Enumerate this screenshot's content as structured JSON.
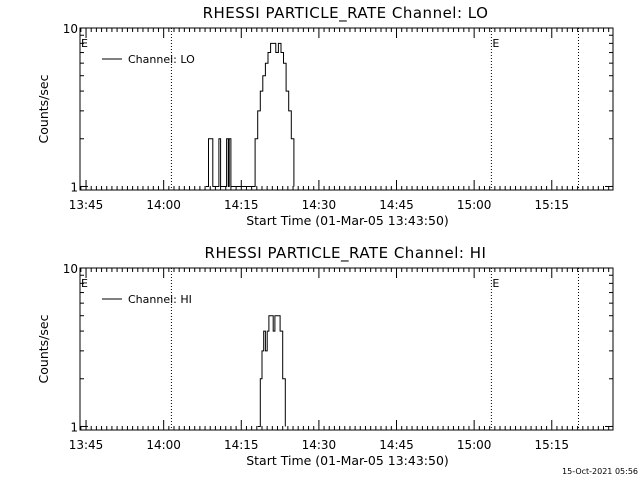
{
  "footer": {
    "timestamp": "15-Oct-2021 05:56"
  },
  "chart_data": [
    {
      "type": "line",
      "title": "RHESSI PARTICLE_RATE Channel: LO",
      "xlabel": "Start Time (01-Mar-05 13:43:50)",
      "ylabel": "Counts/sec",
      "y_scale": "log",
      "ylim": [
        0.95,
        10
      ],
      "y_ticks": [
        "10",
        "1"
      ],
      "xlim": [
        "13:43:50",
        "15:26:50"
      ],
      "x_ticks": [
        "13:45",
        "14:00",
        "14:15",
        "14:30",
        "14:45",
        "15:00",
        "15:15"
      ],
      "grid": false,
      "legend": {
        "position": "top-left",
        "entries": [
          "Channel: LO"
        ]
      },
      "markers": [
        {
          "text": "E",
          "time": "13:43:50"
        },
        {
          "text": "E",
          "time": "15:03:20"
        }
      ],
      "vertical_lines": [
        "14:01:30",
        "15:03:20",
        "15:20:10"
      ],
      "series": [
        {
          "name": "Channel: LO",
          "points": [
            [
              "14:08:10",
              1
            ],
            [
              "14:08:40",
              2
            ],
            [
              "14:09:10",
              2
            ],
            [
              "14:09:30",
              1
            ],
            [
              "14:10:30",
              1
            ],
            [
              "14:10:40",
              2
            ],
            [
              "14:11:00",
              1
            ],
            [
              "14:12:00",
              1
            ],
            [
              "14:12:10",
              2
            ],
            [
              "14:12:30",
              1
            ],
            [
              "14:12:40",
              2
            ],
            [
              "14:13:00",
              1
            ],
            [
              "14:17:10",
              1
            ],
            [
              "14:17:40",
              2
            ],
            [
              "14:18:10",
              3
            ],
            [
              "14:18:40",
              4
            ],
            [
              "14:19:10",
              5
            ],
            [
              "14:19:40",
              6
            ],
            [
              "14:20:10",
              7
            ],
            [
              "14:20:40",
              8
            ],
            [
              "14:21:10",
              8
            ],
            [
              "14:21:40",
              7
            ],
            [
              "14:22:10",
              8
            ],
            [
              "14:22:40",
              7
            ],
            [
              "14:23:10",
              6
            ],
            [
              "14:23:40",
              4
            ],
            [
              "14:24:10",
              3
            ],
            [
              "14:24:40",
              2
            ],
            [
              "14:25:10",
              1
            ]
          ]
        }
      ]
    },
    {
      "type": "line",
      "title": "RHESSI PARTICLE_RATE Channel: HI",
      "xlabel": "Start Time (01-Mar-05 13:43:50)",
      "ylabel": "Counts/sec",
      "y_scale": "log",
      "ylim": [
        0.95,
        10
      ],
      "y_ticks": [
        "10",
        "1"
      ],
      "xlim": [
        "13:43:50",
        "15:26:50"
      ],
      "x_ticks": [
        "13:45",
        "14:00",
        "14:15",
        "14:30",
        "14:45",
        "15:00",
        "15:15"
      ],
      "grid": false,
      "legend": {
        "position": "top-left",
        "entries": [
          "Channel: HI"
        ]
      },
      "markers": [
        {
          "text": "E",
          "time": "13:43:50"
        },
        {
          "text": "E",
          "time": "15:03:20"
        }
      ],
      "vertical_lines": [
        "14:01:30",
        "15:03:20",
        "15:20:10"
      ],
      "series": [
        {
          "name": "Channel: HI",
          "points": [
            [
              "14:18:10",
              1
            ],
            [
              "14:18:40",
              2
            ],
            [
              "14:19:00",
              3
            ],
            [
              "14:19:20",
              4
            ],
            [
              "14:19:40",
              3
            ],
            [
              "14:20:00",
              4
            ],
            [
              "14:20:20",
              5
            ],
            [
              "14:20:50",
              5
            ],
            [
              "14:21:10",
              4
            ],
            [
              "14:21:30",
              5
            ],
            [
              "14:22:00",
              5
            ],
            [
              "14:22:30",
              4
            ],
            [
              "14:23:00",
              2
            ],
            [
              "14:23:30",
              1
            ]
          ]
        }
      ]
    }
  ]
}
